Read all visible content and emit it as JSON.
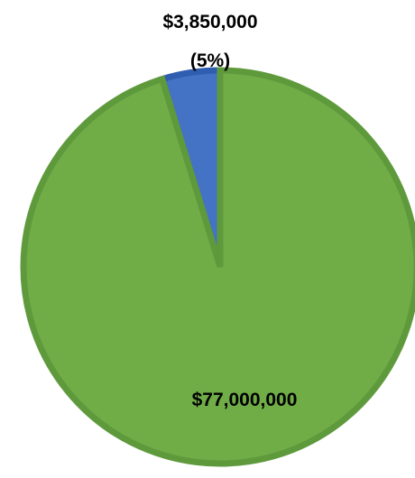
{
  "chart_data": {
    "type": "pie",
    "categories": [
      "",
      ""
    ],
    "values": [
      3850000,
      77000000
    ],
    "data_labels": [
      {
        "value_text": "$3,850,000",
        "percent_text": "(5%)"
      },
      {
        "value_text": "$77,000,000",
        "percent_text": ""
      }
    ],
    "colors": {
      "slice_fills": [
        "#4472c4",
        "#70ad47"
      ],
      "slice_borders": [
        "#2f5eb0",
        "#5e9a3c"
      ]
    },
    "legend": "none"
  }
}
